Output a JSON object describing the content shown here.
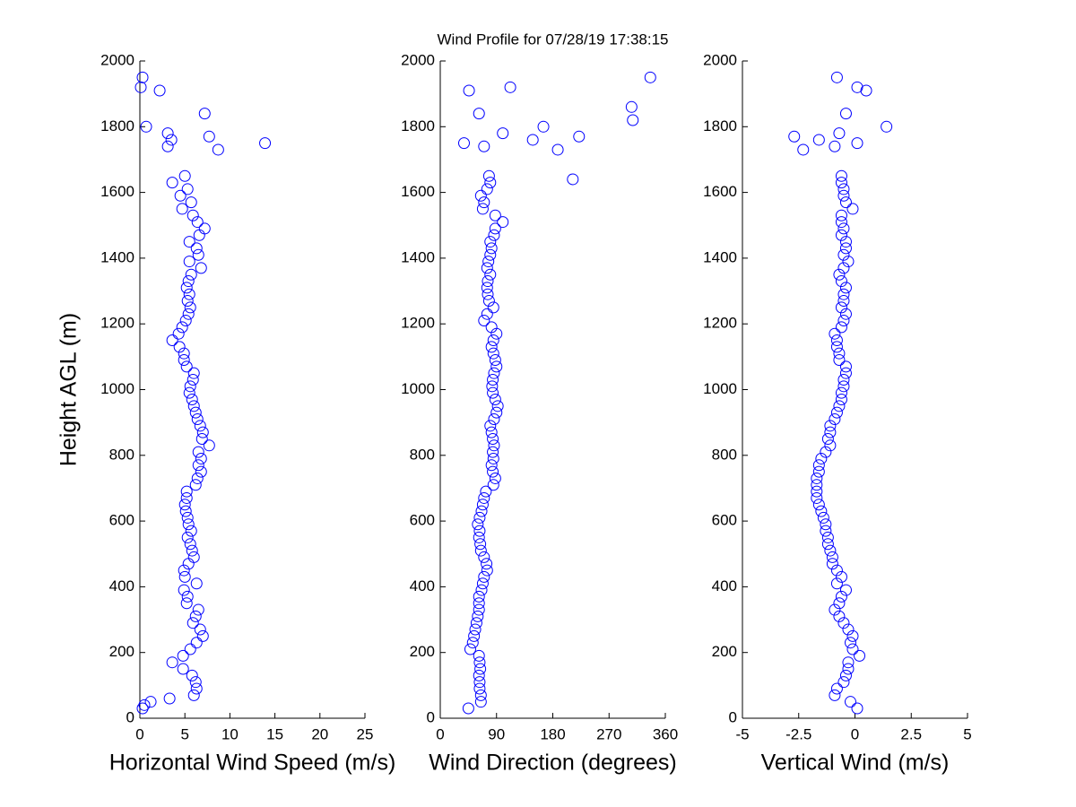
{
  "chart_data": [
    {
      "type": "scatter",
      "ylabel": "Height AGL (m)",
      "xlabel": "Horizontal Wind Speed (m/s)",
      "color": "#0000ff",
      "xlim": [
        0,
        25
      ],
      "xticks": [
        0,
        5,
        10,
        15,
        20,
        25
      ],
      "ylim": [
        0,
        2000
      ],
      "yticks": [
        0,
        200,
        400,
        600,
        800,
        1000,
        1200,
        1400,
        1600,
        1800,
        2000
      ],
      "x": [
        0.3,
        0.5,
        1.2,
        3.3,
        6,
        6.3,
        6.2,
        5.8,
        4.8,
        3.6,
        4.8,
        5.6,
        6.3,
        7,
        6.7,
        5.9,
        6.2,
        6.5,
        5.2,
        5.3,
        4.9,
        6.3,
        5,
        4.9,
        5.4,
        6,
        5.8,
        5.6,
        5.3,
        5.7,
        5.4,
        5.3,
        5.1,
        5,
        5.2,
        5.2,
        6.2,
        6.4,
        6.8,
        6.5,
        6.8,
        6.5,
        7.7,
        6.9,
        7,
        6.7,
        6.4,
        6.2,
        6,
        5.8,
        5.5,
        5.6,
        5.9,
        6,
        5.2,
        4.9,
        4.9,
        4.4,
        3.6,
        4.3,
        4.7,
        5.1,
        5.4,
        5.6,
        5.3,
        5.5,
        5.2,
        5.4,
        5.7,
        6.8,
        5.5,
        6.5,
        6.3,
        5.5,
        6.6,
        7.2,
        6.4,
        5.9,
        4.7,
        5.7,
        4.5,
        5.3,
        3.6,
        5,
        8.7,
        3.1,
        13.9,
        3.5,
        7.7,
        3.1,
        0.7,
        7.2,
        2.2,
        0.1,
        0.3
      ],
      "y": [
        30,
        40,
        50,
        60,
        70,
        90,
        110,
        130,
        150,
        170,
        190,
        210,
        230,
        250,
        270,
        290,
        310,
        330,
        350,
        370,
        390,
        410,
        430,
        450,
        470,
        490,
        510,
        530,
        550,
        570,
        590,
        610,
        630,
        650,
        670,
        690,
        710,
        730,
        750,
        770,
        790,
        810,
        830,
        850,
        870,
        890,
        910,
        930,
        950,
        970,
        990,
        1010,
        1030,
        1050,
        1070,
        1090,
        1110,
        1130,
        1150,
        1170,
        1190,
        1210,
        1230,
        1250,
        1270,
        1290,
        1310,
        1330,
        1350,
        1370,
        1390,
        1410,
        1430,
        1450,
        1470,
        1490,
        1510,
        1530,
        1550,
        1570,
        1590,
        1610,
        1630,
        1650,
        1730,
        1740,
        1750,
        1760,
        1770,
        1780,
        1800,
        1840,
        1910,
        1920,
        1950
      ]
    },
    {
      "type": "scatter",
      "title": "Wind Profile for  07/28/19 17:38:15",
      "xlabel": "Wind Direction (degrees)",
      "color": "#0000ff",
      "xlim": [
        0,
        360
      ],
      "xticks": [
        0,
        90,
        180,
        270,
        360
      ],
      "ylim": [
        0,
        2000
      ],
      "yticks": [
        0,
        200,
        400,
        600,
        800,
        1000,
        1200,
        1400,
        1600,
        1800,
        2000
      ],
      "x": [
        45,
        65,
        65,
        63,
        63,
        62,
        64,
        63,
        62,
        48,
        52,
        54,
        56,
        58,
        60,
        62,
        62,
        62,
        66,
        68,
        70,
        75,
        74,
        70,
        65,
        64,
        62,
        63,
        60,
        63,
        66,
        68,
        70,
        73,
        85,
        88,
        84,
        82,
        85,
        84,
        86,
        84,
        82,
        80,
        86,
        90,
        92,
        88,
        84,
        83,
        84,
        86,
        90,
        88,
        85,
        82,
        85,
        90,
        82,
        70,
        75,
        85,
        78,
        76,
        75,
        76,
        80,
        75,
        77,
        80,
        82,
        80,
        86,
        88,
        100,
        88,
        68,
        70,
        65,
        75,
        80,
        78,
        212,
        188,
        70,
        38,
        148,
        222,
        100,
        165,
        308,
        306,
        62,
        46,
        112,
        336
      ],
      "y": [
        30,
        50,
        70,
        90,
        110,
        130,
        150,
        170,
        190,
        210,
        230,
        250,
        270,
        290,
        310,
        330,
        350,
        370,
        390,
        410,
        430,
        450,
        470,
        490,
        510,
        530,
        550,
        570,
        590,
        610,
        630,
        650,
        670,
        690,
        710,
        730,
        750,
        770,
        790,
        810,
        830,
        850,
        870,
        890,
        910,
        930,
        950,
        970,
        990,
        1010,
        1030,
        1050,
        1070,
        1090,
        1110,
        1130,
        1150,
        1170,
        1190,
        1210,
        1230,
        1250,
        1270,
        1290,
        1310,
        1330,
        1350,
        1370,
        1390,
        1410,
        1430,
        1450,
        1470,
        1490,
        1510,
        1530,
        1550,
        1570,
        1590,
        1610,
        1630,
        1650,
        1640,
        1730,
        1740,
        1750,
        1760,
        1770,
        1780,
        1800,
        1820,
        1860,
        1840,
        1910,
        1920,
        1950
      ]
    },
    {
      "type": "scatter",
      "xlabel": "Vertical Wind (m/s)",
      "color": "#0000ff",
      "xlim": [
        -5,
        5
      ],
      "xticks": [
        -5,
        -2.5,
        0,
        2.5,
        5
      ],
      "ylim": [
        0,
        2000
      ],
      "yticks": [
        0,
        200,
        400,
        600,
        800,
        1000,
        1200,
        1400,
        1600,
        1800,
        2000
      ],
      "x": [
        0.1,
        -0.2,
        -0.9,
        -0.8,
        -0.5,
        -0.4,
        -0.3,
        -0.3,
        0.2,
        -0.1,
        -0.2,
        -0.1,
        -0.3,
        -0.5,
        -0.7,
        -0.9,
        -0.7,
        -0.6,
        -0.4,
        -0.8,
        -0.6,
        -0.8,
        -1,
        -1,
        -1.1,
        -1.2,
        -1.2,
        -1.3,
        -1.3,
        -1.4,
        -1.5,
        -1.6,
        -1.7,
        -1.7,
        -1.7,
        -1.7,
        -1.6,
        -1.6,
        -1.5,
        -1.3,
        -1.1,
        -1.2,
        -1.1,
        -1.1,
        -0.9,
        -0.8,
        -0.7,
        -0.6,
        -0.6,
        -0.5,
        -0.5,
        -0.4,
        -0.4,
        -0.7,
        -0.7,
        -0.8,
        -0.8,
        -0.9,
        -0.6,
        -0.5,
        -0.4,
        -0.6,
        -0.5,
        -0.5,
        -0.4,
        -0.6,
        -0.7,
        -0.5,
        -0.3,
        -0.5,
        -0.4,
        -0.4,
        -0.6,
        -0.5,
        -0.6,
        -0.6,
        -0.1,
        -0.4,
        -0.5,
        -0.5,
        -0.6,
        -0.6,
        -2.3,
        -0.9,
        0.1,
        -1.6,
        -2.7,
        -0.7,
        1.4,
        -0.4,
        0.5,
        0.1,
        -0.8
      ],
      "y": [
        30,
        50,
        70,
        90,
        110,
        130,
        150,
        170,
        190,
        210,
        230,
        250,
        270,
        290,
        310,
        330,
        350,
        370,
        390,
        410,
        430,
        450,
        470,
        490,
        510,
        530,
        550,
        570,
        590,
        610,
        630,
        650,
        670,
        690,
        710,
        730,
        750,
        770,
        790,
        810,
        830,
        850,
        870,
        890,
        910,
        930,
        950,
        970,
        990,
        1010,
        1030,
        1050,
        1070,
        1090,
        1110,
        1130,
        1150,
        1170,
        1190,
        1210,
        1230,
        1250,
        1270,
        1290,
        1310,
        1330,
        1350,
        1370,
        1390,
        1410,
        1430,
        1450,
        1470,
        1490,
        1510,
        1530,
        1550,
        1570,
        1590,
        1610,
        1630,
        1650,
        1730,
        1740,
        1750,
        1760,
        1770,
        1780,
        1800,
        1840,
        1910,
        1920,
        1950
      ]
    }
  ]
}
